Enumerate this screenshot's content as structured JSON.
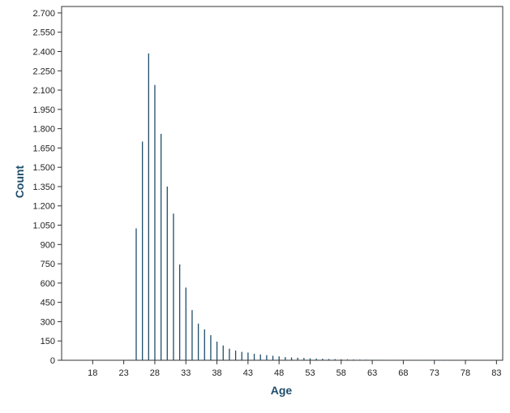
{
  "chart_data": {
    "type": "bar",
    "xlabel": "Age",
    "ylabel": "Count",
    "xlim": [
      13,
      84
    ],
    "ylim": [
      0,
      2750
    ],
    "x_ticks": [
      18,
      23,
      28,
      33,
      38,
      43,
      48,
      53,
      58,
      63,
      68,
      73,
      78,
      83
    ],
    "x_tick_labels": [
      "18",
      "23",
      "28",
      "33",
      "38",
      "43",
      "48",
      "53",
      "58",
      "63",
      "68",
      "73",
      "78",
      "83"
    ],
    "y_ticks": [
      0,
      150,
      300,
      450,
      600,
      750,
      900,
      1050,
      1200,
      1350,
      1500,
      1650,
      1800,
      1950,
      2100,
      2250,
      2400,
      2550,
      2700
    ],
    "y_tick_labels": [
      "0",
      "150",
      "300",
      "450",
      "600",
      "750",
      "900",
      "1.050",
      "1.200",
      "1.350",
      "1.500",
      "1.650",
      "1.800",
      "1.950",
      "2.100",
      "2.250",
      "2.400",
      "2.550",
      "2.700"
    ],
    "grid": false,
    "bar_color": "#1f4e6b",
    "x": [
      25,
      26,
      27,
      28,
      29,
      30,
      31,
      32,
      33,
      34,
      35,
      36,
      37,
      38,
      39,
      40,
      41,
      42,
      43,
      44,
      45,
      46,
      47,
      48,
      49,
      50,
      51,
      52,
      53,
      54,
      55,
      56,
      57,
      58,
      59,
      60,
      61,
      62,
      63,
      64,
      65,
      66,
      67,
      68,
      69,
      70,
      71,
      72,
      73,
      74,
      75
    ],
    "values": [
      1025,
      1700,
      2385,
      2140,
      1760,
      1350,
      1140,
      745,
      565,
      390,
      285,
      240,
      195,
      145,
      115,
      90,
      75,
      65,
      60,
      50,
      45,
      40,
      35,
      30,
      25,
      22,
      20,
      18,
      15,
      13,
      12,
      10,
      9,
      8,
      7,
      6,
      5,
      5,
      4,
      4,
      3,
      3,
      3,
      2,
      2,
      2,
      2,
      1,
      1,
      1,
      1
    ]
  }
}
